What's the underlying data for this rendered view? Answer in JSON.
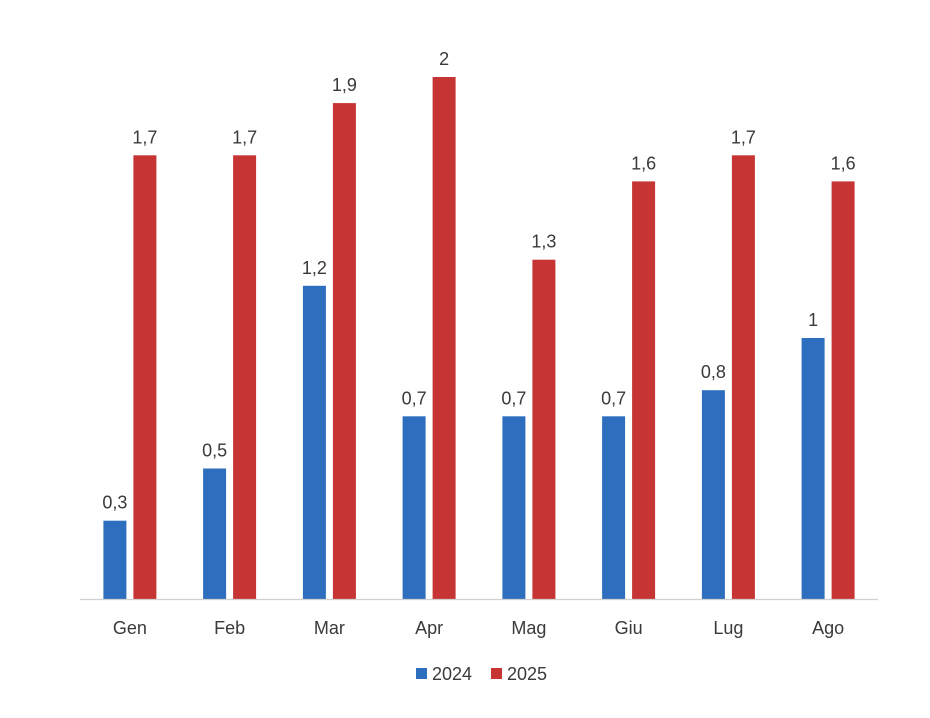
{
  "chart_data": {
    "type": "bar",
    "categories": [
      "Gen",
      "Feb",
      "Mar",
      "Apr",
      "Mag",
      "Giu",
      "Lug",
      "Ago"
    ],
    "series": [
      {
        "name": "2024",
        "color": "#2e6ebe",
        "values": [
          0.3,
          0.5,
          1.2,
          0.7,
          0.7,
          0.7,
          0.8,
          1
        ],
        "labels": [
          "0,3",
          "0,5",
          "1,2",
          "0,7",
          "0,7",
          "0,7",
          "0,8",
          "1"
        ]
      },
      {
        "name": "2025",
        "color": "#c63434",
        "values": [
          1.7,
          1.7,
          1.9,
          2,
          1.3,
          1.6,
          1.7,
          1.6
        ],
        "labels": [
          "1,7",
          "1,7",
          "1,9",
          "2",
          "1,3",
          "1,6",
          "1,7",
          "1,6"
        ]
      }
    ],
    "ylim": [
      0,
      2
    ],
    "grid": false,
    "legend_position": "bottom"
  }
}
